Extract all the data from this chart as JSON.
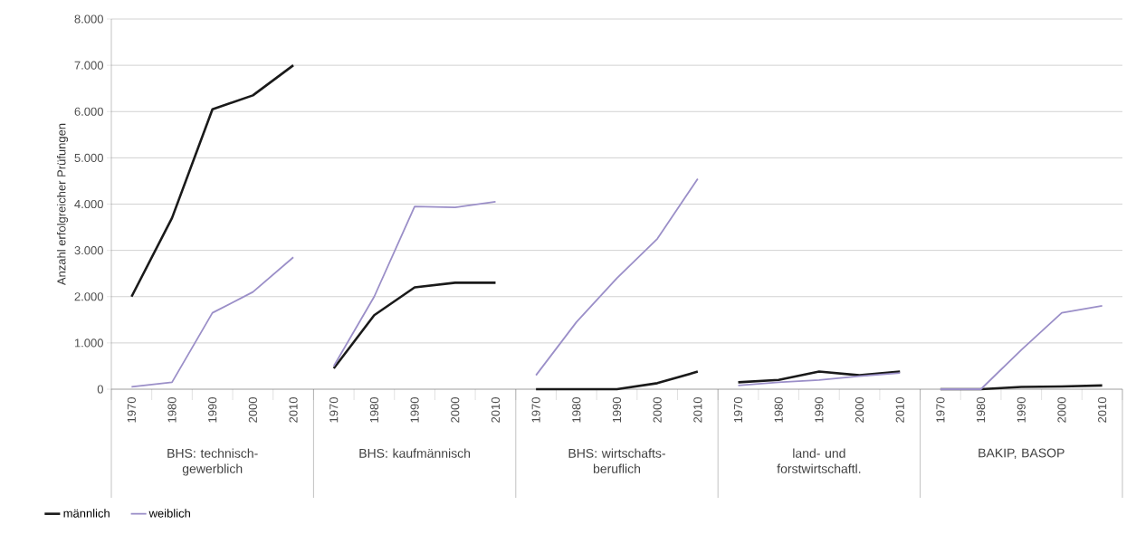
{
  "chart_data": {
    "type": "line",
    "ylabel": "Anzahl erfolgreicher Prüfungen",
    "categories": [
      "1970",
      "1980",
      "1990",
      "2000",
      "2010",
      "1970",
      "1980",
      "1990",
      "2000",
      "2010",
      "1970",
      "1980",
      "1990",
      "2000",
      "2010",
      "1970",
      "1980",
      "1990",
      "2000",
      "2010",
      "1970",
      "1980",
      "1990",
      "2000",
      "2010"
    ],
    "series": [
      {
        "name": "männlich",
        "color": "#1a1a1a",
        "values": [
          2000,
          3700,
          6050,
          6350,
          7000,
          null,
          null,
          null,
          null,
          null,
          null,
          null,
          null,
          null,
          null,
          null,
          null,
          null,
          null,
          null,
          null,
          null,
          null,
          null,
          null
        ]
      },
      {
        "name": "weiblich",
        "color": "#9b8fc8",
        "values": [
          50,
          150,
          1650,
          2100,
          2850,
          null,
          null,
          null,
          null,
          null,
          null,
          null,
          null,
          null,
          null,
          null,
          null,
          null,
          null,
          null,
          null,
          null,
          null,
          null,
          null
        ]
      },
      {
        "color": "#1a1a1a",
        "values": [
          null,
          null,
          null,
          null,
          null,
          450,
          1600,
          2200,
          2300,
          2300,
          null,
          null,
          null,
          null,
          null,
          null,
          null,
          null,
          null,
          null,
          null,
          null,
          null,
          null,
          null
        ]
      },
      {
        "color": "#9b8fc8",
        "values": [
          null,
          null,
          null,
          null,
          null,
          500,
          2000,
          3950,
          3930,
          4050,
          null,
          null,
          null,
          null,
          null,
          null,
          null,
          null,
          null,
          null,
          null,
          null,
          null,
          null,
          null
        ]
      },
      {
        "color": "#1a1a1a",
        "values": [
          null,
          null,
          null,
          null,
          null,
          null,
          null,
          null,
          null,
          null,
          0,
          0,
          0,
          130,
          380,
          null,
          null,
          null,
          null,
          null,
          null,
          null,
          null,
          null,
          null
        ]
      },
      {
        "color": "#9b8fc8",
        "values": [
          null,
          null,
          null,
          null,
          null,
          null,
          null,
          null,
          null,
          null,
          300,
          1450,
          2400,
          3250,
          4550,
          null,
          null,
          null,
          null,
          null,
          null,
          null,
          null,
          null,
          null
        ]
      },
      {
        "color": "#1a1a1a",
        "values": [
          null,
          null,
          null,
          null,
          null,
          null,
          null,
          null,
          null,
          null,
          null,
          null,
          null,
          null,
          null,
          150,
          200,
          380,
          300,
          380,
          null,
          null,
          null,
          null,
          null
        ]
      },
      {
        "color": "#9b8fc8",
        "values": [
          null,
          null,
          null,
          null,
          null,
          null,
          null,
          null,
          null,
          null,
          null,
          null,
          null,
          null,
          null,
          80,
          150,
          200,
          280,
          350,
          null,
          null,
          null,
          null,
          null
        ]
      },
      {
        "color": "#1a1a1a",
        "values": [
          null,
          null,
          null,
          null,
          null,
          null,
          null,
          null,
          null,
          null,
          null,
          null,
          null,
          null,
          null,
          null,
          null,
          null,
          null,
          null,
          0,
          0,
          50,
          60,
          80
        ]
      },
      {
        "color": "#9b8fc8",
        "values": [
          null,
          null,
          null,
          null,
          null,
          null,
          null,
          null,
          null,
          null,
          null,
          null,
          null,
          null,
          null,
          null,
          null,
          null,
          null,
          null,
          0,
          0,
          850,
          1650,
          1800
        ]
      }
    ],
    "annotations": [
      "BHS: technisch-gewerblich",
      "BHS: kaufmännisch",
      "BHS: wirtschafts-beruflich",
      "land- und forstwirtschaftl.",
      "BAKIP, BASOP"
    ],
    "ylim": [
      0,
      8000
    ],
    "yticks": [
      {
        "value": 0,
        "label": "0"
      },
      {
        "value": 1000,
        "label": "1.000"
      },
      {
        "value": 2000,
        "label": "2.000"
      },
      {
        "value": 3000,
        "label": "3.000"
      },
      {
        "value": 4000,
        "label": "4.000"
      },
      {
        "value": 5000,
        "label": "5.000"
      },
      {
        "value": 6000,
        "label": "6.000"
      },
      {
        "value": 7000,
        "label": "7.000"
      },
      {
        "value": 8000,
        "label": "8.000"
      }
    ],
    "grid": "y",
    "legend": "bottom left",
    "marker": "none",
    "line_style": "solid"
  }
}
